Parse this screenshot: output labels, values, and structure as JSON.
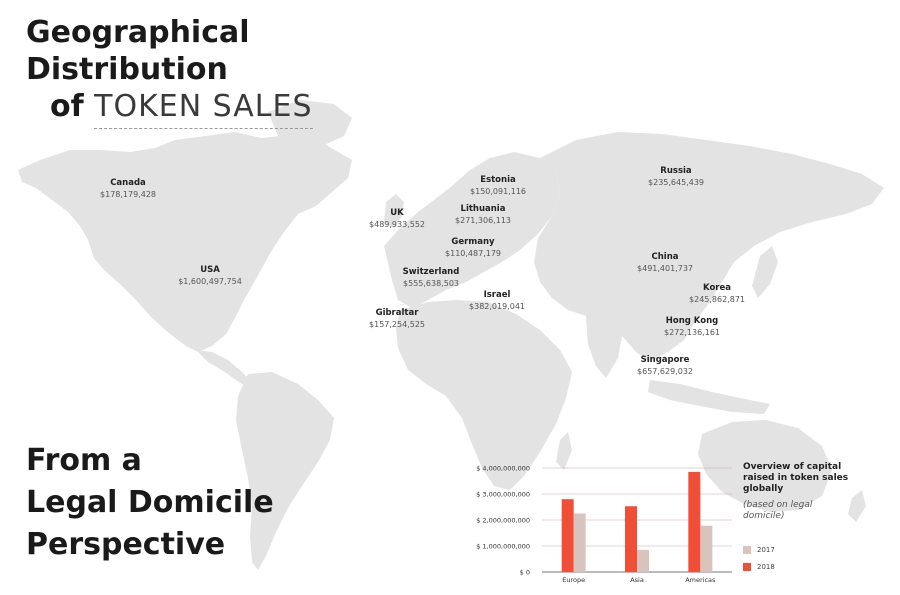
{
  "title": {
    "line1": "Geographical",
    "line2": "Distribution",
    "line3_bold": "of",
    "line3_thin": "TOKEN SALES"
  },
  "subtitle": {
    "line1": "From a",
    "line2": "Legal Domicile",
    "line3": "Perspective"
  },
  "locations": [
    {
      "name": "Canada",
      "value": "$178,179,428"
    },
    {
      "name": "USA",
      "value": "$1,600,497,754"
    },
    {
      "name": "UK",
      "value": "$489,933,552"
    },
    {
      "name": "Estonia",
      "value": "$150,091,116"
    },
    {
      "name": "Lithuania",
      "value": "$271,306,113"
    },
    {
      "name": "Germany",
      "value": "$110,487,179"
    },
    {
      "name": "Switzerland",
      "value": "$555,638,503"
    },
    {
      "name": "Israel",
      "value": "$382,019,041"
    },
    {
      "name": "Gibraltar",
      "value": "$157,254,525"
    },
    {
      "name": "Russia",
      "value": "$235,645,439"
    },
    {
      "name": "China",
      "value": "$491,401,737"
    },
    {
      "name": "Korea",
      "value": "$245,862,871"
    },
    {
      "name": "Hong Kong",
      "value": "$272,136,161"
    },
    {
      "name": "Singapore",
      "value": "$657,629,032"
    }
  ],
  "chart_data": {
    "type": "bar",
    "title": "Overview of capital raised in token sales globally",
    "subtitle": "(based on legal domicile)",
    "categories": [
      "Europe",
      "Asia",
      "Americas"
    ],
    "series": [
      {
        "name": "2017",
        "color": "#d9c4bd",
        "values": [
          2250000000,
          850000000,
          1780000000
        ]
      },
      {
        "name": "2018",
        "color": "#f04e37",
        "values": [
          2800000000,
          2530000000,
          3850000000
        ]
      }
    ],
    "ylim": [
      0,
      4000000000
    ],
    "yticks": [
      "$ 0",
      "$ 1,000,000,000",
      "$ 2,000,000,000",
      "$ 3,000,000,000",
      "$ 4,000,000,000"
    ],
    "grid": true,
    "legend": "right"
  }
}
